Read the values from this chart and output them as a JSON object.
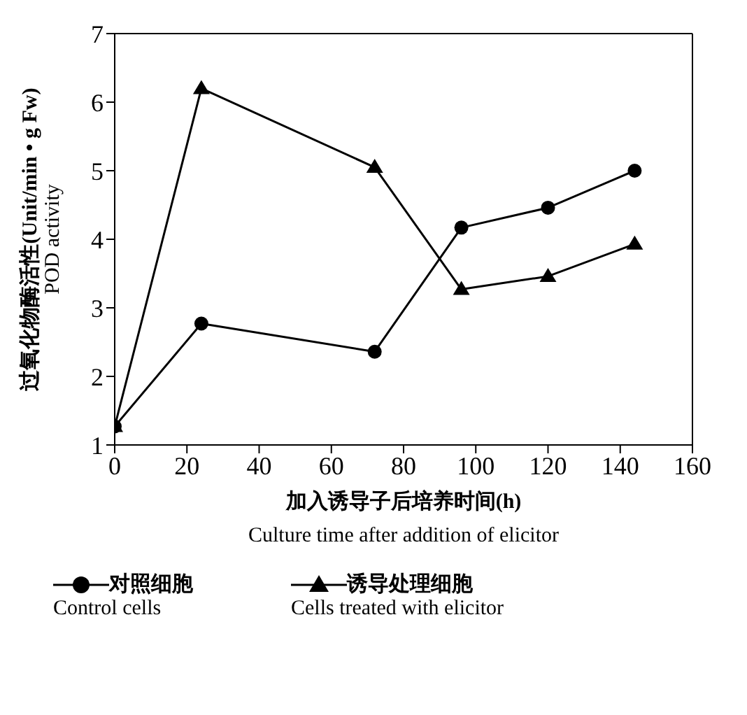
{
  "chart_data": {
    "type": "line",
    "xlabel": "加入诱导子后培养时间(h)\nCulture time after addition of elicitor",
    "ylabel": "过氧化物酶活性(Unit/min • g Fw)\nPOD activity",
    "x": [
      0,
      24,
      72,
      96,
      120,
      144
    ],
    "xlim": [
      0,
      160
    ],
    "xticks": [
      0,
      20,
      40,
      60,
      80,
      100,
      120,
      140,
      160
    ],
    "ylim": [
      1,
      7
    ],
    "yticks": [
      1,
      2,
      3,
      4,
      5,
      6,
      7
    ],
    "grid": false,
    "legend": "bottom",
    "line_style": "solid",
    "series": [
      {
        "name": "对照细胞\nControl cells",
        "color": "#000000",
        "marker": "circle",
        "values": [
          1.27,
          2.77,
          2.36,
          4.17,
          4.46,
          5.0
        ]
      },
      {
        "name": "诱导处理细胞\nCells treated with elicitor",
        "color": "#000000",
        "marker": "triangle",
        "values": [
          1.27,
          6.2,
          5.05,
          3.27,
          3.46,
          3.93
        ]
      }
    ]
  }
}
